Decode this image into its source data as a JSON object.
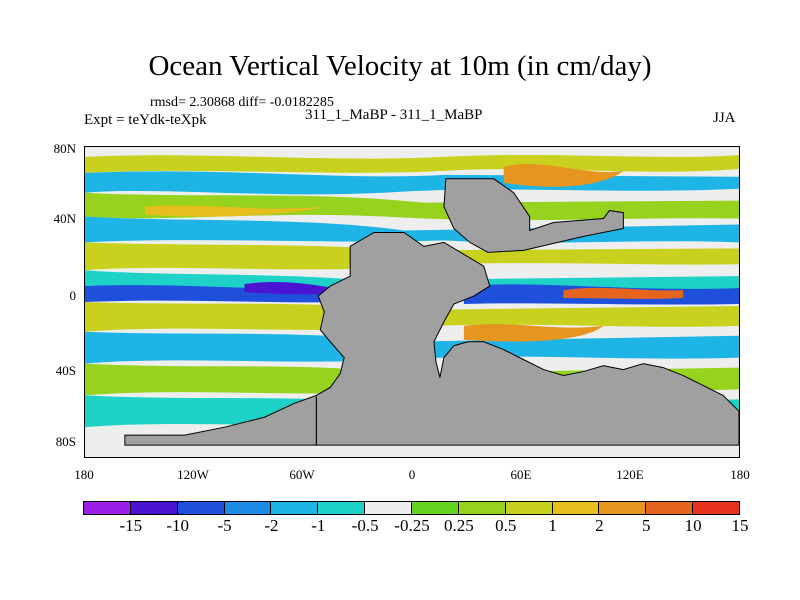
{
  "title": "Ocean Vertical Velocity at 10m (in cm/day)",
  "stats": "rmsd= 2.30868  diff= -0.0182285",
  "experiment": "Expt = teYdk-teXpk",
  "comparison": "311_1_MaBP - 311_1_MaBP",
  "season": "JJA",
  "lat_labels": [
    "80N",
    "40N",
    "0",
    "40S",
    "80S"
  ],
  "lon_labels": [
    "180",
    "120W",
    "60W",
    "0",
    "60E",
    "120E",
    "180"
  ],
  "colorbar": {
    "labels": [
      "-15",
      "-10",
      "-5",
      "-2",
      "-1",
      "-0.5",
      "-0.25",
      "0.25",
      "0.5",
      "1",
      "2",
      "5",
      "10",
      "15"
    ],
    "colors": [
      "#9b1ee6",
      "#4b14d2",
      "#1e50dc",
      "#1e8ce6",
      "#1eb4e6",
      "#1ed2c8",
      "#eeeeee",
      "#64d21e",
      "#96d21e",
      "#c8d21e",
      "#e6be1e",
      "#e6961e",
      "#e6641e",
      "#e6321e"
    ]
  },
  "land_color": "#a0a0a0"
}
